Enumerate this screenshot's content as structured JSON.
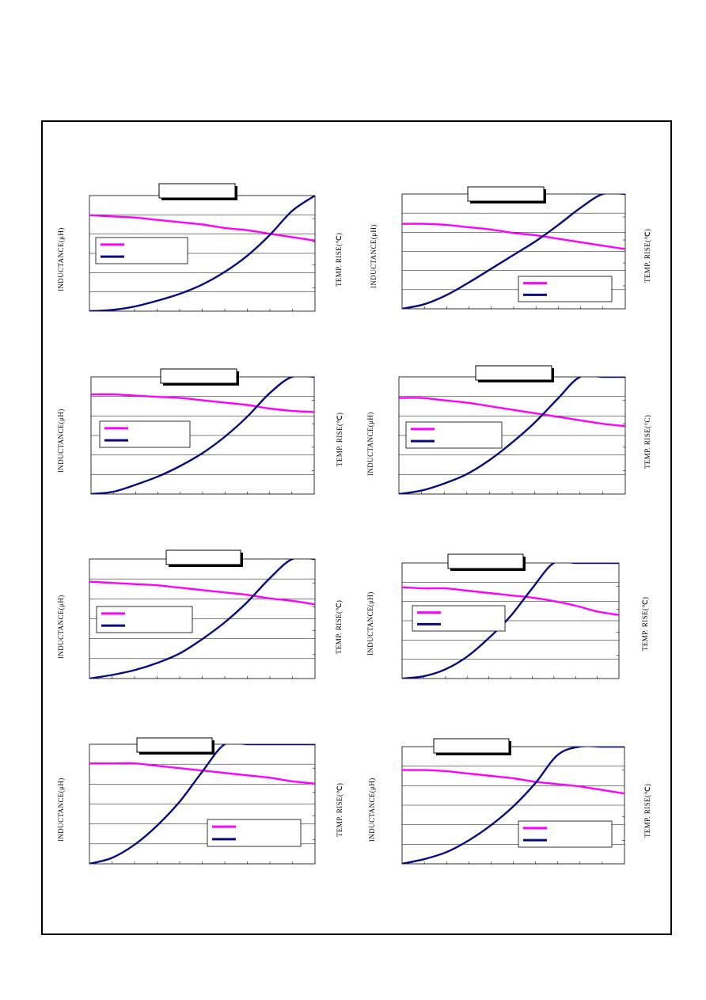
{
  "colors": {
    "inductance": "#ff00ff",
    "temp_rise": "#0a0a78",
    "frame": "#000000",
    "grid": "#000000"
  },
  "labels": {
    "y_left": "INDUCTANCE(μH)",
    "y_right": "TEMP. RISE(℃)",
    "y_right_alt": "TEMP. RISE(°C)"
  },
  "chart_data": [
    {
      "type": "line",
      "id": "panel-1",
      "title": "",
      "xlabel": "",
      "ylabel": "INDUCTANCE(μH)",
      "ylabel_right": "TEMP. RISE(℃)",
      "x": [
        0,
        0.1,
        0.2,
        0.3,
        0.4,
        0.5,
        0.6,
        0.7,
        0.8,
        0.9,
        1.0
      ],
      "ylim": [
        0,
        1
      ],
      "grid": "horizontal",
      "legend": "middle-left",
      "series": [
        {
          "key": "inductance",
          "values": [
            0.83,
            0.82,
            0.81,
            0.79,
            0.77,
            0.75,
            0.72,
            0.7,
            0.67,
            0.64,
            0.61
          ]
        },
        {
          "key": "temp_rise",
          "values": [
            0.0,
            0.01,
            0.04,
            0.09,
            0.15,
            0.23,
            0.34,
            0.48,
            0.66,
            0.87,
            1.0
          ]
        }
      ]
    },
    {
      "type": "line",
      "id": "panel-2",
      "title": "",
      "xlabel": "",
      "ylabel": "INDUCTANCE(μH)",
      "ylabel_right": "TEMP. RISE(℃)",
      "x": [
        0,
        0.1,
        0.2,
        0.3,
        0.4,
        0.5,
        0.6,
        0.7,
        0.8,
        0.9,
        1.0
      ],
      "ylim": [
        0,
        1
      ],
      "grid": "horizontal",
      "legend": "lower-right",
      "series": [
        {
          "key": "inductance",
          "values": [
            0.74,
            0.74,
            0.73,
            0.71,
            0.69,
            0.66,
            0.64,
            0.61,
            0.58,
            0.55,
            0.52
          ]
        },
        {
          "key": "temp_rise",
          "values": [
            0.0,
            0.04,
            0.12,
            0.23,
            0.35,
            0.47,
            0.59,
            0.73,
            0.88,
            1.0,
            1.0
          ]
        }
      ]
    },
    {
      "type": "line",
      "id": "panel-3",
      "title": "",
      "xlabel": "",
      "ylabel": "INDUCTANCE(μH)",
      "ylabel_right": "TEMP. RISE(℃)",
      "x": [
        0,
        0.1,
        0.2,
        0.3,
        0.4,
        0.5,
        0.6,
        0.7,
        0.8,
        0.9,
        1.0
      ],
      "ylim": [
        0,
        1
      ],
      "grid": "horizontal",
      "legend": "middle-left",
      "series": [
        {
          "key": "inductance",
          "values": [
            0.85,
            0.85,
            0.84,
            0.83,
            0.82,
            0.8,
            0.78,
            0.76,
            0.73,
            0.71,
            0.7
          ]
        },
        {
          "key": "temp_rise",
          "values": [
            0.0,
            0.02,
            0.08,
            0.15,
            0.24,
            0.35,
            0.49,
            0.66,
            0.86,
            1.0,
            1.0
          ]
        }
      ]
    },
    {
      "type": "line",
      "id": "panel-4",
      "title": "",
      "xlabel": "",
      "ylabel": "INDUCTANCE(μH)",
      "ylabel_right": "TEMP. RISE(°C)",
      "x": [
        0,
        0.1,
        0.2,
        0.3,
        0.4,
        0.5,
        0.6,
        0.7,
        0.8,
        0.9,
        1.0
      ],
      "ylim": [
        0,
        1
      ],
      "grid": "horizontal",
      "legend": "middle-left",
      "series": [
        {
          "key": "inductance",
          "values": [
            0.82,
            0.82,
            0.8,
            0.78,
            0.75,
            0.72,
            0.69,
            0.66,
            0.63,
            0.6,
            0.58
          ]
        },
        {
          "key": "temp_rise",
          "values": [
            0.0,
            0.03,
            0.09,
            0.17,
            0.29,
            0.44,
            0.61,
            0.81,
            1.0,
            1.0,
            1.0
          ]
        }
      ]
    },
    {
      "type": "line",
      "id": "panel-5",
      "title": "",
      "xlabel": "",
      "ylabel": "INDUCTANCE(μH)",
      "ylabel_right": "TEMP. RISE(℃)",
      "x": [
        0,
        0.1,
        0.2,
        0.3,
        0.4,
        0.5,
        0.6,
        0.7,
        0.8,
        0.9,
        1.0
      ],
      "ylim": [
        0,
        1
      ],
      "grid": "horizontal",
      "legend": "middle-left",
      "series": [
        {
          "key": "inductance",
          "values": [
            0.81,
            0.8,
            0.79,
            0.78,
            0.76,
            0.74,
            0.72,
            0.7,
            0.67,
            0.65,
            0.62
          ]
        },
        {
          "key": "temp_rise",
          "values": [
            0.0,
            0.03,
            0.07,
            0.13,
            0.21,
            0.33,
            0.47,
            0.64,
            0.84,
            1.0,
            1.0
          ]
        }
      ]
    },
    {
      "type": "line",
      "id": "panel-6",
      "title": "",
      "xlabel": "",
      "ylabel": "INDUCTANCE(μH)",
      "ylabel_right": "TEMP. RISE(℃)",
      "x": [
        0,
        0.1,
        0.2,
        0.3,
        0.4,
        0.5,
        0.6,
        0.7,
        0.8,
        0.9,
        1.0
      ],
      "ylim": [
        0,
        1
      ],
      "grid": "horizontal",
      "legend": "middle-left",
      "series": [
        {
          "key": "inductance",
          "values": [
            0.79,
            0.78,
            0.78,
            0.76,
            0.74,
            0.72,
            0.7,
            0.67,
            0.63,
            0.58,
            0.55
          ]
        },
        {
          "key": "temp_rise",
          "values": [
            0.0,
            0.02,
            0.08,
            0.19,
            0.35,
            0.54,
            0.78,
            1.0,
            1.0,
            1.0,
            1.0
          ]
        }
      ]
    },
    {
      "type": "line",
      "id": "panel-7",
      "title": "",
      "xlabel": "",
      "ylabel": "INDUCTANCE(μH)",
      "ylabel_right": "TEMP. RISE(℃)",
      "x": [
        0,
        0.1,
        0.2,
        0.3,
        0.4,
        0.5,
        0.6,
        0.7,
        0.8,
        0.9,
        1.0
      ],
      "ylim": [
        0,
        1
      ],
      "grid": "horizontal",
      "legend": "lower-right",
      "series": [
        {
          "key": "inductance",
          "values": [
            0.84,
            0.84,
            0.84,
            0.82,
            0.8,
            0.78,
            0.76,
            0.74,
            0.72,
            0.69,
            0.67
          ]
        },
        {
          "key": "temp_rise",
          "values": [
            0.0,
            0.05,
            0.16,
            0.32,
            0.52,
            0.77,
            1.0,
            1.0,
            1.0,
            1.0,
            1.0
          ]
        }
      ]
    },
    {
      "type": "line",
      "id": "panel-8",
      "title": "",
      "xlabel": "",
      "ylabel": "INDUCTANCE(μH)",
      "ylabel_right": "TEMP. RISE(℃)",
      "x": [
        0,
        0.1,
        0.2,
        0.3,
        0.4,
        0.5,
        0.6,
        0.7,
        0.8,
        0.9,
        1.0
      ],
      "ylim": [
        0,
        1
      ],
      "grid": "horizontal",
      "legend": "lower-right",
      "series": [
        {
          "key": "inductance",
          "values": [
            0.8,
            0.8,
            0.79,
            0.77,
            0.75,
            0.73,
            0.7,
            0.68,
            0.66,
            0.63,
            0.6
          ]
        },
        {
          "key": "temp_rise",
          "values": [
            0.0,
            0.04,
            0.1,
            0.2,
            0.33,
            0.49,
            0.69,
            0.93,
            1.0,
            1.0,
            1.0
          ]
        }
      ]
    }
  ]
}
